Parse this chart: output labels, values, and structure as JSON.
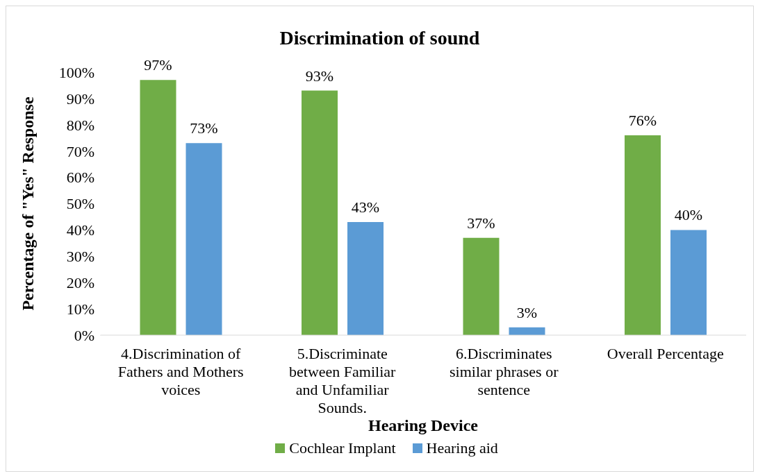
{
  "chart_data": {
    "type": "bar",
    "title": "Discrimination of sound",
    "xlabel": "Hearing Device",
    "ylabel": "Percentage of \"Yes\" Response",
    "categories": [
      "4.Discrimination of Fathers and Mothers voices",
      "5.Discriminate between Familiar and Unfamiliar Sounds.",
      "6.Discriminates similar phrases or sentence",
      "Overall Percentage"
    ],
    "series": [
      {
        "name": "Cochlear Implant",
        "color": "#70ad47",
        "values": [
          97,
          93,
          37,
          76
        ],
        "value_labels": [
          "97%",
          "93%",
          "37%",
          "76%"
        ]
      },
      {
        "name": "Hearing aid",
        "color": "#5b9bd5",
        "values": [
          73,
          43,
          3,
          40
        ],
        "value_labels": [
          "73%",
          "43%",
          "3%",
          "40%"
        ]
      }
    ],
    "ylim": [
      0,
      100
    ],
    "yticks": [
      {
        "value": 0,
        "label": "0%"
      },
      {
        "value": 10,
        "label": "10%"
      },
      {
        "value": 20,
        "label": "20%"
      },
      {
        "value": 30,
        "label": "30%"
      },
      {
        "value": 40,
        "label": "40%"
      },
      {
        "value": 50,
        "label": "50%"
      },
      {
        "value": 60,
        "label": "60%"
      },
      {
        "value": 70,
        "label": "70%"
      },
      {
        "value": 80,
        "label": "80%"
      },
      {
        "value": 90,
        "label": "90%"
      },
      {
        "value": 100,
        "label": "100%"
      }
    ],
    "grid": false,
    "legend": "bottom"
  }
}
